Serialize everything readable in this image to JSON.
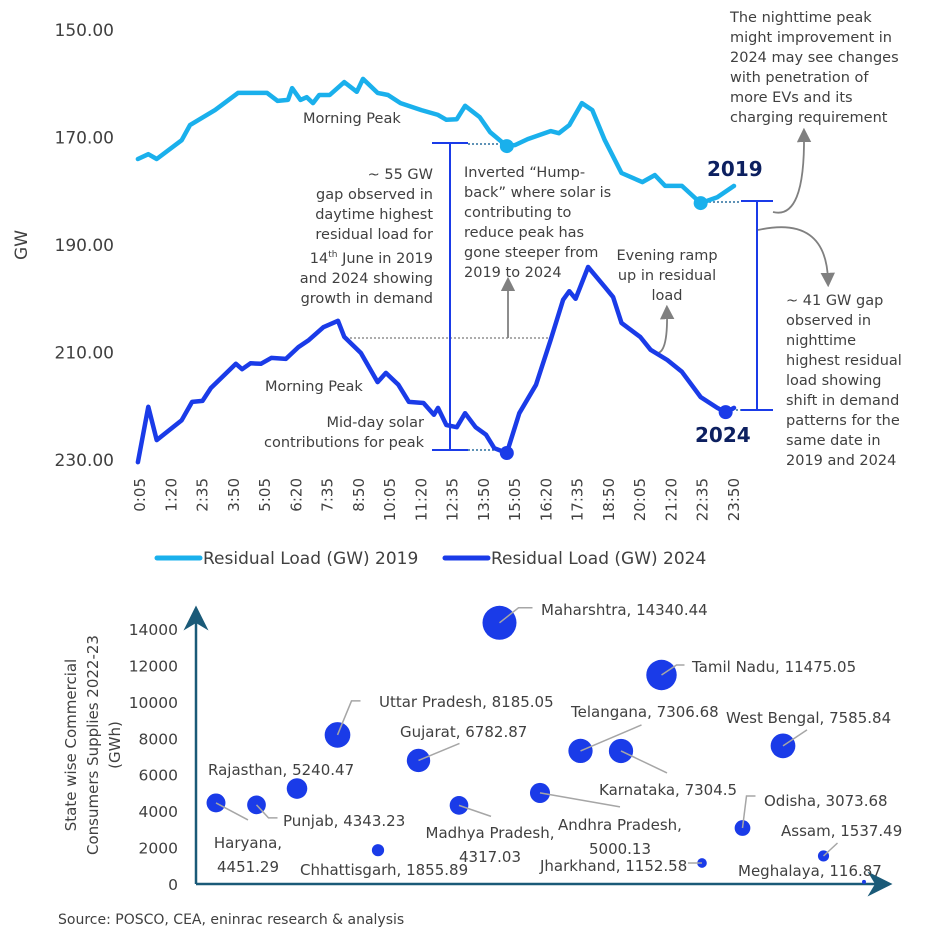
{
  "chart_data": [
    {
      "type": "line",
      "ylabel": "GW",
      "xlabel": "",
      "ylim": [
        230,
        150
      ],
      "y_axis_reversed": true,
      "y_ticks": [
        "150.00",
        "170.00",
        "190.00",
        "210.00",
        "230.00"
      ],
      "x_ticks": [
        "0:05",
        "1:20",
        "2:35",
        "3:50",
        "5:05",
        "6:20",
        "7:35",
        "8:50",
        "10:05",
        "11:20",
        "12:35",
        "13:50",
        "15:05",
        "16:20",
        "17:35",
        "18:50",
        "20:05",
        "21:20",
        "22:35",
        "23:50"
      ],
      "grid": false,
      "legend_position": "bottom",
      "series": [
        {
          "name": "Residual Load (GW) 2019",
          "color": "#1ab0ec",
          "points": [
            [
              "0:00",
              174.0
            ],
            [
              "0:25",
              173.1
            ],
            [
              "0:45",
              174.0
            ],
            [
              "1:45",
              170.5
            ],
            [
              "2:05",
              167.7
            ],
            [
              "3:05",
              164.9
            ],
            [
              "4:00",
              161.7
            ],
            [
              "5:10",
              161.7
            ],
            [
              "5:35",
              163.2
            ],
            [
              "6:00",
              163.0
            ],
            [
              "6:10",
              160.8
            ],
            [
              "6:30",
              163.0
            ],
            [
              "6:45",
              162.5
            ],
            [
              "7:00",
              163.6
            ],
            [
              "7:15",
              162.1
            ],
            [
              "7:40",
              162.1
            ],
            [
              "8:15",
              159.7
            ],
            [
              "8:45",
              161.5
            ],
            [
              "9:00",
              159.1
            ],
            [
              "9:35",
              161.7
            ],
            [
              "10:00",
              162.1
            ],
            [
              "10:30",
              163.6
            ],
            [
              "11:20",
              164.9
            ],
            [
              "12:00",
              165.8
            ],
            [
              "12:20",
              166.7
            ],
            [
              "12:45",
              166.6
            ],
            [
              "13:05",
              164.1
            ],
            [
              "13:40",
              166.2
            ],
            [
              "14:05",
              169.0
            ],
            [
              "14:45",
              171.6
            ],
            [
              "15:05",
              171.4
            ],
            [
              "15:35",
              170.3
            ],
            [
              "16:05",
              169.5
            ],
            [
              "16:30",
              168.8
            ],
            [
              "16:50",
              169.2
            ],
            [
              "17:15",
              167.7
            ],
            [
              "17:45",
              163.6
            ],
            [
              "18:10",
              164.9
            ],
            [
              "18:40",
              170.5
            ],
            [
              "19:20",
              176.6
            ],
            [
              "20:10",
              178.3
            ],
            [
              "20:40",
              177.0
            ],
            [
              "21:05",
              179.0
            ],
            [
              "21:45",
              179.0
            ],
            [
              "22:30",
              182.2
            ],
            [
              "23:10",
              181.1
            ],
            [
              "23:50",
              179.0
            ]
          ],
          "markers": [
            [
              "14:45",
              171.6
            ],
            [
              "22:30",
              182.2
            ]
          ]
        },
        {
          "name": "Residual Load (GW) 2024",
          "color": "#1a3be8",
          "points": [
            [
              "0:00",
              230.4
            ],
            [
              "0:25",
              220.1
            ],
            [
              "0:45",
              226.3
            ],
            [
              "1:45",
              222.6
            ],
            [
              "2:10",
              219.2
            ],
            [
              "2:35",
              219.0
            ],
            [
              "2:55",
              216.6
            ],
            [
              "3:55",
              212.1
            ],
            [
              "4:10",
              213.1
            ],
            [
              "4:30",
              212.0
            ],
            [
              "4:55",
              212.1
            ],
            [
              "5:20",
              211.0
            ],
            [
              "5:55",
              211.2
            ],
            [
              "6:25",
              209.0
            ],
            [
              "6:50",
              207.7
            ],
            [
              "7:25",
              205.3
            ],
            [
              "8:00",
              204.1
            ],
            [
              "8:15",
              207.1
            ],
            [
              "8:55",
              210.1
            ],
            [
              "9:35",
              215.5
            ],
            [
              "9:55",
              213.8
            ],
            [
              "10:25",
              216.0
            ],
            [
              "10:50",
              219.2
            ],
            [
              "11:25",
              219.4
            ],
            [
              "11:50",
              221.6
            ],
            [
              "12:00",
              220.3
            ],
            [
              "12:20",
              223.5
            ],
            [
              "12:45",
              223.9
            ],
            [
              "13:05",
              221.3
            ],
            [
              "13:30",
              223.9
            ],
            [
              "13:55",
              225.3
            ],
            [
              "14:15",
              227.8
            ],
            [
              "14:45",
              228.7
            ],
            [
              "15:15",
              221.3
            ],
            [
              "15:55",
              216.0
            ],
            [
              "16:30",
              207.7
            ],
            [
              "17:00",
              200.2
            ],
            [
              "17:15",
              198.6
            ],
            [
              "17:30",
              200.0
            ],
            [
              "18:00",
              194.1
            ],
            [
              "18:40",
              197.8
            ],
            [
              "19:00",
              199.7
            ],
            [
              "19:20",
              204.5
            ],
            [
              "20:05",
              207.1
            ],
            [
              "20:30",
              209.5
            ],
            [
              "21:10",
              211.4
            ],
            [
              "21:45",
              213.6
            ],
            [
              "22:30",
              218.3
            ],
            [
              "23:10",
              220.3
            ],
            [
              "23:30",
              221.1
            ],
            [
              "23:50",
              220.3
            ]
          ],
          "markers": [
            [
              "14:45",
              228.7
            ],
            [
              "23:30",
              221.1
            ]
          ]
        }
      ],
      "annotations": {
        "ev_note": [
          "The nighttime peak",
          "might improvement in",
          "2024 may see changes",
          "with penetration of",
          "more EVs and its",
          "charging requirement"
        ],
        "morning_peak_2019": "Morning Peak",
        "morning_peak_2024": "Morning Peak",
        "gap_55": [
          "~ 55 GW",
          "gap observed in",
          "daytime highest",
          "residual load for",
          "14",
          "th",
          " June in 2019",
          "and 2024 showing",
          "growth in demand"
        ],
        "humpback": [
          "Inverted “Hump-",
          "back” where solar is",
          "contributing to",
          "reduce peak has",
          "gone steeper from",
          "2019 to 2024"
        ],
        "evening_ramp": [
          "Evening ramp",
          "up in residual",
          "load"
        ],
        "midday_solar": [
          "Mid-day solar",
          "contributions for peak"
        ],
        "label_2019": "2019",
        "label_2024": "2024",
        "gap_41": [
          "~ 41 GW gap",
          "observed in",
          "nighttime",
          "highest residual",
          "load showing",
          "shift in demand",
          "patterns for the",
          "same date in",
          "2019 and 2024"
        ]
      }
    },
    {
      "type": "scatter",
      "subtype": "bubble",
      "ylabel": [
        "State wise Commercial",
        "Consumers Supplies  2022-23",
        "(GWh)"
      ],
      "xlabel": "",
      "ylim": [
        0,
        14000
      ],
      "y_ticks": [
        "0",
        "2000",
        "4000",
        "6000",
        "8000",
        "10000",
        "12000",
        "14000"
      ],
      "grid": false,
      "color": "#1a3be8",
      "points": [
        {
          "name": "Haryana",
          "value": 4451.29,
          "label": [
            "Haryana,",
            "4451.29"
          ]
        },
        {
          "name": "Punjab",
          "value": 4343.23,
          "label": [
            "Punjab, 4343.23"
          ]
        },
        {
          "name": "Rajasthan",
          "value": 5240.47,
          "label": [
            "Rajasthan, 5240.47"
          ]
        },
        {
          "name": "Uttar Pradesh",
          "value": 8185.05,
          "label": [
            "Uttar Pradesh, 8185.05"
          ]
        },
        {
          "name": "Chhattisgarh",
          "value": 1855.89,
          "label": [
            "Chhattisgarh, 1855.89"
          ]
        },
        {
          "name": "Gujarat",
          "value": 6782.87,
          "label": [
            "Gujarat, 6782.87"
          ]
        },
        {
          "name": "Madhya Pradesh",
          "value": 4317.03,
          "label": [
            "Madhya Pradesh,",
            "4317.03"
          ]
        },
        {
          "name": "Maharshtra",
          "value": 14340.44,
          "label": [
            "Maharshtra, 14340.44"
          ]
        },
        {
          "name": "Andhra Pradesh",
          "value": 5000.13,
          "label": [
            "Andhra Pradesh,",
            "5000.13"
          ]
        },
        {
          "name": "Telangana",
          "value": 7306.68,
          "label": [
            "Telangana, 7306.68"
          ]
        },
        {
          "name": "Karnataka",
          "value": 7304.5,
          "label": [
            "Karnataka, 7304.5"
          ]
        },
        {
          "name": "Tamil Nadu",
          "value": 11475.05,
          "label": [
            "Tamil Nadu, 11475.05"
          ]
        },
        {
          "name": "Jharkhand",
          "value": 1152.58,
          "label": [
            "Jharkhand, 1152.58"
          ]
        },
        {
          "name": "Odisha",
          "value": 3073.68,
          "label": [
            "Odisha, 3073.68"
          ]
        },
        {
          "name": "West Bengal",
          "value": 7585.84,
          "label": [
            "West Bengal, 7585.84"
          ]
        },
        {
          "name": "Assam",
          "value": 1537.49,
          "label": [
            "Assam, 1537.49"
          ]
        },
        {
          "name": "Meghalaya",
          "value": 116.87,
          "label": [
            "Meghalaya, 116.87"
          ]
        }
      ]
    }
  ],
  "source": "Source: POSCO, CEA, eninrac research & analysis",
  "colors": {
    "text": "#404040",
    "navy": "#0d2060",
    "axis": "#1a5a78",
    "leader": "#a6a6a6",
    "arrow": "#808080"
  }
}
